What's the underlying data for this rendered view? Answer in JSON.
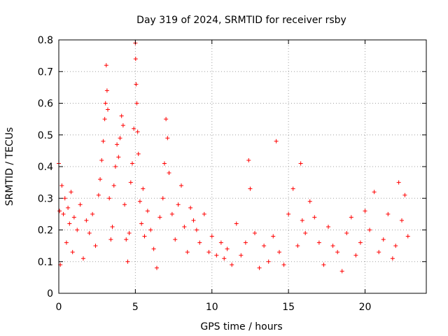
{
  "chart_data": {
    "type": "scatter",
    "title": "Day 319 of 2024, SRMTID for receiver rsby",
    "xlabel": "GPS time / hours",
    "ylabel": "SRMTID / TECUs",
    "xlim": [
      0,
      24
    ],
    "ylim": [
      0,
      0.8
    ],
    "xticks": [
      0,
      5,
      10,
      15,
      20
    ],
    "xtick_labels": [
      "0",
      "5",
      "10",
      "15",
      "20"
    ],
    "yticks": [
      0,
      0.1,
      0.2,
      0.3,
      0.4,
      0.5,
      0.6,
      0.7,
      0.8
    ],
    "ytick_labels": [
      "0",
      "0.1",
      "0.2",
      "0.3",
      "0.4",
      "0.5",
      "0.6",
      "0.7",
      "0.8"
    ],
    "grid": true,
    "marker": "+",
    "color": "#ff0000",
    "series": [
      {
        "name": "rsby",
        "x": [
          0.0,
          0.05,
          0.1,
          0.2,
          0.3,
          0.4,
          0.5,
          0.6,
          0.7,
          0.8,
          0.9,
          1.0,
          1.2,
          1.4,
          1.6,
          1.8,
          2.0,
          2.2,
          2.4,
          2.6,
          2.7,
          2.8,
          2.9,
          3.0,
          3.05,
          3.1,
          3.15,
          3.2,
          3.3,
          3.4,
          3.5,
          3.6,
          3.7,
          3.8,
          3.9,
          4.0,
          4.1,
          4.2,
          4.3,
          4.4,
          4.5,
          4.6,
          4.7,
          4.8,
          4.9,
          5.0,
          5.02,
          5.05,
          5.1,
          5.15,
          5.2,
          5.3,
          5.4,
          5.5,
          5.6,
          5.8,
          6.0,
          6.2,
          6.4,
          6.6,
          6.8,
          6.9,
          7.0,
          7.1,
          7.2,
          7.4,
          7.6,
          7.8,
          8.0,
          8.2,
          8.4,
          8.6,
          8.8,
          9.0,
          9.2,
          9.5,
          9.8,
          10.0,
          10.3,
          10.6,
          10.8,
          11.0,
          11.3,
          11.6,
          11.9,
          12.2,
          12.4,
          12.5,
          12.8,
          13.1,
          13.4,
          13.7,
          14.0,
          14.2,
          14.4,
          14.7,
          15.0,
          15.3,
          15.6,
          15.8,
          15.9,
          16.1,
          16.4,
          16.7,
          17.0,
          17.3,
          17.6,
          17.9,
          18.2,
          18.5,
          18.8,
          19.1,
          19.4,
          19.7,
          20.0,
          20.3,
          20.6,
          20.9,
          21.2,
          21.5,
          21.8,
          22.0,
          22.2,
          22.4,
          22.6,
          22.8
        ],
        "y": [
          0.41,
          0.26,
          0.09,
          0.34,
          0.25,
          0.3,
          0.16,
          0.27,
          0.22,
          0.32,
          0.13,
          0.24,
          0.2,
          0.28,
          0.11,
          0.23,
          0.19,
          0.25,
          0.15,
          0.31,
          0.36,
          0.42,
          0.48,
          0.55,
          0.6,
          0.72,
          0.64,
          0.58,
          0.3,
          0.17,
          0.21,
          0.34,
          0.4,
          0.47,
          0.43,
          0.49,
          0.56,
          0.53,
          0.28,
          0.17,
          0.1,
          0.19,
          0.35,
          0.41,
          0.52,
          0.79,
          0.74,
          0.66,
          0.6,
          0.51,
          0.44,
          0.29,
          0.22,
          0.33,
          0.18,
          0.26,
          0.2,
          0.14,
          0.08,
          0.24,
          0.3,
          0.41,
          0.55,
          0.49,
          0.38,
          0.25,
          0.17,
          0.28,
          0.34,
          0.21,
          0.13,
          0.27,
          0.23,
          0.2,
          0.16,
          0.25,
          0.13,
          0.18,
          0.12,
          0.16,
          0.11,
          0.14,
          0.09,
          0.22,
          0.12,
          0.16,
          0.42,
          0.33,
          0.19,
          0.08,
          0.15,
          0.1,
          0.18,
          0.48,
          0.13,
          0.09,
          0.25,
          0.33,
          0.15,
          0.41,
          0.23,
          0.19,
          0.29,
          0.24,
          0.16,
          0.09,
          0.21,
          0.15,
          0.13,
          0.07,
          0.19,
          0.24,
          0.12,
          0.16,
          0.26,
          0.2,
          0.32,
          0.13,
          0.17,
          0.25,
          0.11,
          0.15,
          0.35,
          0.23,
          0.31,
          0.18
        ]
      }
    ]
  }
}
